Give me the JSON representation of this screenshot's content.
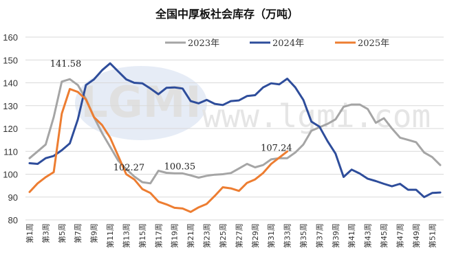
{
  "chart_data": {
    "type": "line",
    "title": "全国中厚板社会库存（万吨）",
    "xlabel": "",
    "ylabel": "",
    "ylim": [
      80,
      160
    ],
    "yticks": [
      80,
      90,
      100,
      110,
      120,
      130,
      140,
      150,
      160
    ],
    "grid": true,
    "legend_position": "top-right",
    "x_tick_labels": [
      "第1周",
      "第3周",
      "第5周",
      "第7周",
      "第9周",
      "第11周",
      "第13周",
      "第15周",
      "第17周",
      "第19周",
      "第21周",
      "第23周",
      "第25周",
      "第27周",
      "第29周",
      "第31周",
      "第33周",
      "第35周",
      "第37周",
      "第39周",
      "第41周",
      "第43周",
      "第45周",
      "第47周",
      "第49周",
      "第51周"
    ],
    "weeks": 52,
    "series": [
      {
        "name": "2023年",
        "color": "#A5A5A5",
        "values": [
          107,
          110,
          113,
          125,
          140.5,
          141.58,
          139,
          133,
          125,
          118,
          112,
          106,
          102.27,
          99,
          96.5,
          96,
          101.5,
          100.6,
          100.4,
          100.35,
          99.5,
          98.5,
          99.3,
          99.8,
          100,
          100.5,
          102.5,
          104.5,
          103,
          104,
          106.5,
          107,
          107,
          109.5,
          113,
          119,
          120.5,
          122,
          124,
          129.5,
          130.5,
          130.5,
          128.5,
          122.5,
          124.5,
          120,
          116,
          115,
          114,
          109.5,
          107.5,
          104
        ]
      },
      {
        "name": "2024年",
        "color": "#2E4D9B",
        "values": [
          104.8,
          104.5,
          107,
          108,
          110.5,
          113.5,
          124,
          139,
          141.5,
          145.5,
          148.5,
          145,
          141.5,
          140,
          139.8,
          137.5,
          135,
          137.8,
          138,
          137.5,
          132,
          131,
          132.5,
          130.8,
          130.3,
          132,
          132.3,
          134.2,
          134.6,
          138,
          139.8,
          139.3,
          141.8,
          138,
          132.5,
          123,
          120.8,
          114.5,
          109,
          98.8,
          102,
          100.3,
          98,
          97,
          95.8,
          94.7,
          95.8,
          93.2,
          93.2,
          90,
          91.8,
          92
        ]
      },
      {
        "name": "2025年",
        "color": "#ED7D31",
        "values": [
          92.2,
          96,
          98.7,
          100.9,
          126.5,
          137.3,
          136,
          132.7,
          125,
          121.5,
          116,
          108,
          100,
          97.7,
          93.5,
          91.8,
          88,
          86.8,
          85.3,
          85,
          83.5,
          85.5,
          87,
          90.5,
          94.3,
          93.8,
          92.7,
          96.2,
          97.7,
          100.5,
          104.5,
          107.24,
          110
        ]
      }
    ],
    "annotations": [
      {
        "text": "141.58",
        "series": "2023年",
        "week": 6
      },
      {
        "text": "102.27",
        "series": "2023年",
        "week": 13
      },
      {
        "text": "100.35",
        "series": "2023年",
        "week": 20
      },
      {
        "text": "107.24",
        "series": "2025年",
        "week": 32
      }
    ],
    "watermark": [
      "LGMI",
      "www.lgmi.com"
    ]
  }
}
